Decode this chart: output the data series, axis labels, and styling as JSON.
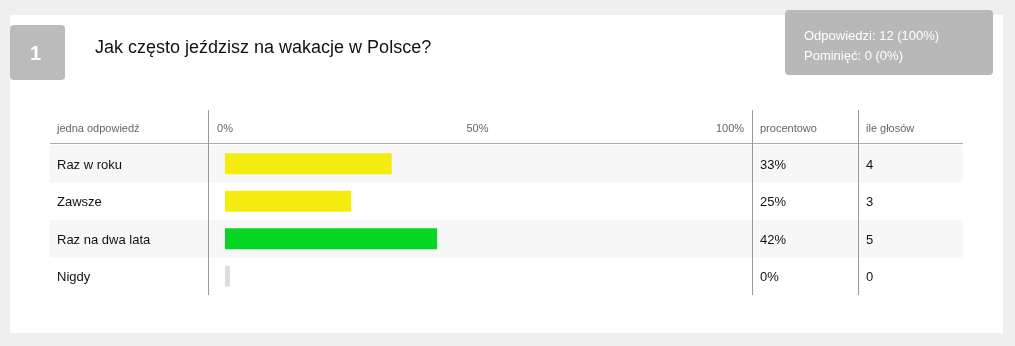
{
  "chart_data": {
    "type": "bar",
    "orientation": "horizontal",
    "title": "Jak często jeździsz na wakacje w Polsce?",
    "ylabel": "jedna odpowiedź",
    "categories": [
      "Raz w roku",
      "Zawsze",
      "Raz na dwa lata",
      "Nigdy"
    ],
    "values": [
      33,
      25,
      42,
      0
    ],
    "colors": [
      "#f5ec0f",
      "#f5ec0f",
      "#05d623",
      "#dddddd"
    ],
    "xlim": [
      0,
      100
    ],
    "xticks": [
      {
        "value": 0,
        "label": "0%"
      },
      {
        "value": 50,
        "label": "50%"
      },
      {
        "value": 100,
        "label": "100%"
      }
    ],
    "annotations": [
      "1",
      "Odpowiedzi: 12 (100%)",
      "Pominięć: 0 (0%)",
      "procentowo",
      "ile głosów",
      "33%",
      "25%",
      "42%",
      "0%",
      "4",
      "3",
      "5",
      "0"
    ]
  }
}
